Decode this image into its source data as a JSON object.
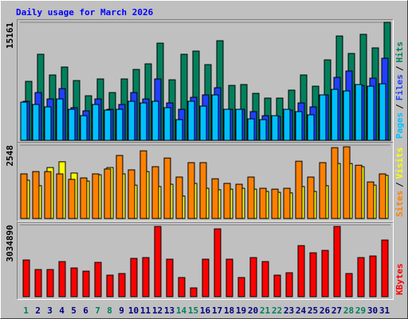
{
  "chart_data": [
    {
      "type": "bar",
      "title": "Daily usage for March 2026",
      "legend_separator": "/",
      "ylim": [
        0,
        15161
      ],
      "yticks": [
        15161
      ],
      "series": [
        {
          "name": "Pages",
          "color": "#00C0FF",
          "values": [
            4910,
            4610,
            4300,
            5320,
            3990,
            3170,
            4610,
            3890,
            3990,
            5020,
            4810,
            5020,
            4200,
            2660,
            5020,
            4400,
            5840,
            3990,
            3990,
            2760,
            2660,
            3170,
            3990,
            3690,
            3280,
            5840,
            6550,
            6350,
            7170,
            6960,
            7270
          ]
        },
        {
          "name": "Files",
          "color": "#2040FF",
          "values": [
            5020,
            6140,
            5320,
            6650,
            4200,
            3790,
            5320,
            3990,
            4610,
            6140,
            5320,
            7890,
            4810,
            3990,
            5530,
            5840,
            6760,
            3990,
            3990,
            3690,
            3170,
            3070,
            3890,
            4810,
            4300,
            5840,
            8090,
            8910,
            7060,
            7990,
            10550
          ]
        },
        {
          "name": "Hits",
          "color": "#00805C",
          "values": [
            7580,
            11060,
            8400,
            9420,
            7680,
            5730,
            7890,
            6140,
            7890,
            9110,
            9830,
            12490,
            7780,
            11060,
            11470,
            9730,
            12800,
            7060,
            7170,
            6040,
            5430,
            5430,
            6450,
            8400,
            6960,
            10340,
            13410,
            11160,
            13620,
            11880,
            15161
          ]
        }
      ]
    },
    {
      "type": "bar",
      "legend_separator": "/",
      "ylim": [
        0,
        2548
      ],
      "yticks": [
        2548
      ],
      "series": [
        {
          "name": "Sites",
          "color": "#FF8000",
          "values": [
            1550,
            1630,
            1630,
            1550,
            1360,
            1410,
            1550,
            1720,
            2190,
            1690,
            2350,
            1800,
            2100,
            1440,
            1940,
            1940,
            1380,
            1220,
            1190,
            1440,
            1050,
            1020,
            1050,
            1990,
            1440,
            1940,
            2460,
            2490,
            1850,
            1270,
            1550
          ]
        },
        {
          "name": "Visits",
          "color": "#FFFF00",
          "values": [
            1330,
            1140,
            1770,
            1970,
            1580,
            1300,
            1520,
            1770,
            1550,
            1160,
            1630,
            1110,
            1190,
            780,
            1220,
            1050,
            1000,
            1020,
            1050,
            1020,
            940,
            910,
            890,
            1110,
            940,
            1140,
            1910,
            1910,
            1800,
            1160,
            1500
          ]
        }
      ]
    },
    {
      "type": "bar",
      "ylim": [
        0,
        3034890
      ],
      "yticks": [
        3034890
      ],
      "categories": [
        "1",
        "2",
        "3",
        "4",
        "5",
        "6",
        "7",
        "8",
        "9",
        "10",
        "11",
        "12",
        "13",
        "14",
        "15",
        "16",
        "17",
        "18",
        "19",
        "20",
        "21",
        "22",
        "23",
        "24",
        "25",
        "26",
        "27",
        "28",
        "29",
        "30",
        "31"
      ],
      "category_colors": [
        "#00805C",
        "#000080",
        "#000080",
        "#000080",
        "#000080",
        "#000080",
        "#00805C",
        "#00805C",
        "#000080",
        "#000080",
        "#000080",
        "#000080",
        "#000080",
        "#00805C",
        "#00805C",
        "#000080",
        "#000080",
        "#000080",
        "#000080",
        "#000080",
        "#00805C",
        "#00805C",
        "#000080",
        "#000080",
        "#000080",
        "#000080",
        "#000080",
        "#00805C",
        "#00805C",
        "#000080",
        "#000080"
      ],
      "series": [
        {
          "name": "KBytes",
          "color": "#FF0000",
          "values": [
            1551000,
            1146500,
            1146500,
            1483700,
            1214000,
            1079000,
            1450000,
            910500,
            977900,
            1618600,
            1652300,
            2967400,
            1584900,
            809300,
            370900,
            1584900,
            2866300,
            1584900,
            809300,
            1652300,
            1483700,
            910500,
            1011600,
            2158100,
            1854600,
            1955800,
            2967400,
            977900,
            1652300,
            1719800,
            2394200
          ]
        }
      ]
    }
  ]
}
